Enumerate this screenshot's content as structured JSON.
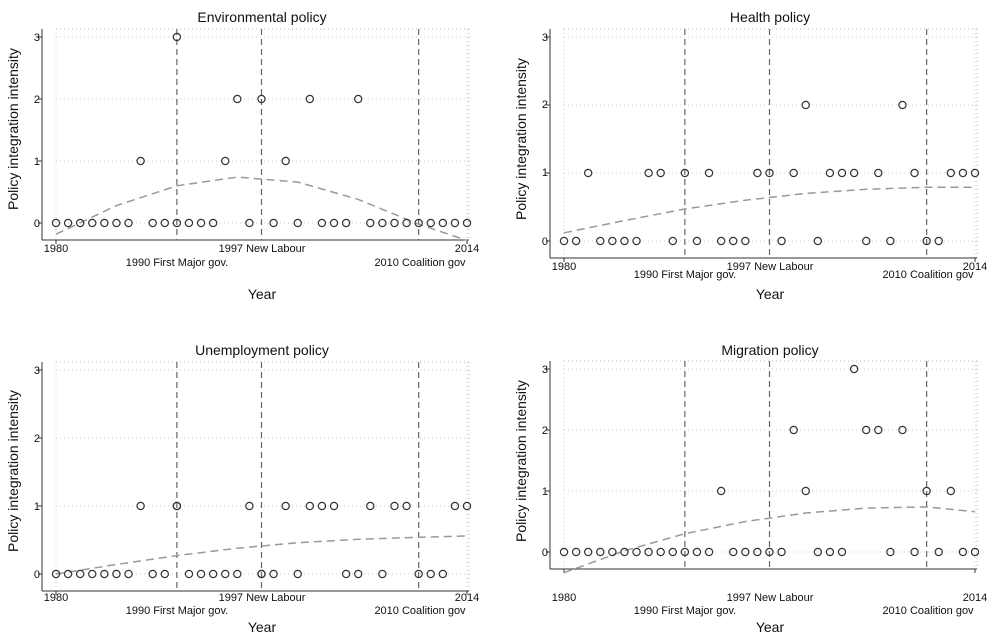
{
  "chart_data": [
    {
      "type": "scatter",
      "title": "Environmental policy",
      "xlabel": "Year",
      "ylabel": "Policy integration intensity",
      "xlim": [
        1980,
        2014
      ],
      "ylim": [
        0,
        3
      ],
      "x_ticks": [
        "1980",
        "2014"
      ],
      "y_ticks": [
        "0",
        "1",
        "2",
        "3"
      ],
      "events": [
        {
          "x": 1990,
          "label": "1990 First Major gov."
        },
        {
          "x": 1997,
          "label": "1997 New Labour"
        },
        {
          "x": 2010,
          "label": "2010 Coalition gov"
        }
      ],
      "grid": true,
      "points": {
        "x": [
          1980,
          1981,
          1982,
          1983,
          1984,
          1985,
          1986,
          1987,
          1988,
          1989,
          1990,
          1990,
          1991,
          1992,
          1993,
          1994,
          1995,
          1996,
          1997,
          1998,
          1999,
          2000,
          2001,
          2002,
          2003,
          2004,
          2005,
          2006,
          2007,
          2008,
          2009,
          2010,
          2011,
          2012,
          2013,
          2014
        ],
        "y": [
          0,
          0,
          0,
          0,
          0,
          0,
          0,
          1,
          0,
          0,
          0,
          3,
          0,
          0,
          0,
          1,
          2,
          0,
          2,
          0,
          1,
          0,
          2,
          0,
          0,
          0,
          2,
          0,
          0,
          0,
          0,
          0,
          0,
          0,
          0,
          0
        ]
      },
      "fit": {
        "type": "quadratic",
        "x": [
          1980,
          1985,
          1990,
          1995,
          2000,
          2005,
          2010,
          2014
        ],
        "y": [
          -0.18,
          0.28,
          0.6,
          0.74,
          0.66,
          0.38,
          -0.02,
          -0.28
        ]
      }
    },
    {
      "type": "scatter",
      "title": "Health policy",
      "xlabel": "Year",
      "ylabel": "Policy integration intensity",
      "xlim": [
        1980,
        2014
      ],
      "ylim": [
        0,
        3
      ],
      "x_ticks": [
        "1980",
        "2014"
      ],
      "y_ticks": [
        "0",
        "1",
        "2",
        "3"
      ],
      "events": [
        {
          "x": 1990,
          "label": "1990 First Major gov."
        },
        {
          "x": 1997,
          "label": "1997 New Labour"
        },
        {
          "x": 2010,
          "label": "2010 Coalition gov"
        }
      ],
      "grid": true,
      "points": {
        "x": [
          1980,
          1981,
          1982,
          1983,
          1984,
          1985,
          1986,
          1987,
          1988,
          1989,
          1990,
          1991,
          1992,
          1993,
          1994,
          1995,
          1996,
          1997,
          1998,
          1999,
          2000,
          2001,
          2002,
          2003,
          2004,
          2005,
          2006,
          2007,
          2008,
          2009,
          2010,
          2011,
          2012,
          2013,
          2014
        ],
        "y": [
          0,
          0,
          1,
          0,
          0,
          0,
          0,
          1,
          1,
          0,
          1,
          0,
          1,
          0,
          0,
          0,
          1,
          1,
          0,
          1,
          2,
          0,
          1,
          1,
          1,
          0,
          1,
          0,
          2,
          1,
          0,
          0,
          1,
          1,
          1
        ]
      },
      "fit": {
        "type": "quadratic",
        "x": [
          1980,
          1985,
          1990,
          1995,
          2000,
          2005,
          2010,
          2014
        ],
        "y": [
          0.12,
          0.3,
          0.47,
          0.6,
          0.7,
          0.76,
          0.79,
          0.79
        ]
      }
    },
    {
      "type": "scatter",
      "title": "Unemployment policy",
      "xlabel": "Year",
      "ylabel": "Policy integration intensity",
      "xlim": [
        1980,
        2014
      ],
      "ylim": [
        0,
        3
      ],
      "x_ticks": [
        "1980",
        "2014"
      ],
      "y_ticks": [
        "0",
        "1",
        "2",
        "3"
      ],
      "events": [
        {
          "x": 1990,
          "label": "1990 First Major gov."
        },
        {
          "x": 1997,
          "label": "1997 New Labour"
        },
        {
          "x": 2010,
          "label": "2010 Coalition gov"
        }
      ],
      "grid": true,
      "points": {
        "x": [
          1980,
          1981,
          1982,
          1983,
          1984,
          1985,
          1986,
          1987,
          1988,
          1989,
          1990,
          1990,
          1991,
          1992,
          1993,
          1994,
          1995,
          1996,
          1997,
          1997,
          1998,
          1999,
          2000,
          2001,
          2002,
          2003,
          2004,
          2005,
          2006,
          2007,
          2008,
          2009,
          2010,
          2011,
          2012,
          2013,
          2014
        ],
        "y": [
          0,
          0,
          0,
          0,
          0,
          0,
          0,
          1,
          0,
          0,
          1,
          1,
          0,
          0,
          0,
          0,
          0,
          1,
          0,
          0,
          0,
          1,
          0,
          1,
          1,
          1,
          0,
          0,
          1,
          0,
          1,
          1,
          0,
          0,
          0,
          1,
          1
        ]
      },
      "fit": {
        "type": "quadratic",
        "x": [
          1980,
          1985,
          1990,
          1995,
          2000,
          2005,
          2010,
          2014
        ],
        "y": [
          0.0,
          0.14,
          0.27,
          0.38,
          0.46,
          0.51,
          0.54,
          0.56
        ]
      }
    },
    {
      "type": "scatter",
      "title": "Migration policy",
      "xlabel": "Year",
      "ylabel": "Policy integration intensity",
      "xlim": [
        1980,
        2014
      ],
      "ylim": [
        0,
        3
      ],
      "x_ticks": [
        "1980",
        "2014"
      ],
      "y_ticks": [
        "0",
        "1",
        "2",
        "3"
      ],
      "events": [
        {
          "x": 1990,
          "label": "1990 First Major gov."
        },
        {
          "x": 1997,
          "label": "1997 New Labour"
        },
        {
          "x": 2010,
          "label": "2010 Coalition gov"
        }
      ],
      "grid": true,
      "points": {
        "x": [
          1980,
          1981,
          1982,
          1983,
          1984,
          1985,
          1986,
          1987,
          1988,
          1989,
          1990,
          1991,
          1992,
          1993,
          1994,
          1995,
          1996,
          1997,
          1998,
          1999,
          2000,
          2001,
          2002,
          2003,
          2004,
          2005,
          2006,
          2007,
          2008,
          2009,
          2010,
          2011,
          2012,
          2013,
          2014
        ],
        "y": [
          0,
          0,
          0,
          0,
          0,
          0,
          0,
          0,
          0,
          0,
          0,
          0,
          0,
          1,
          0,
          0,
          0,
          0,
          0,
          2,
          1,
          0,
          0,
          0,
          3,
          2,
          2,
          0,
          2,
          0,
          1,
          0,
          1,
          0,
          0
        ]
      },
      "fit": {
        "type": "quadratic",
        "x": [
          1980,
          1985,
          1990,
          1995,
          2000,
          2005,
          2010,
          2014
        ],
        "y": [
          -0.34,
          0.02,
          0.3,
          0.5,
          0.64,
          0.72,
          0.74,
          0.66
        ]
      }
    }
  ]
}
